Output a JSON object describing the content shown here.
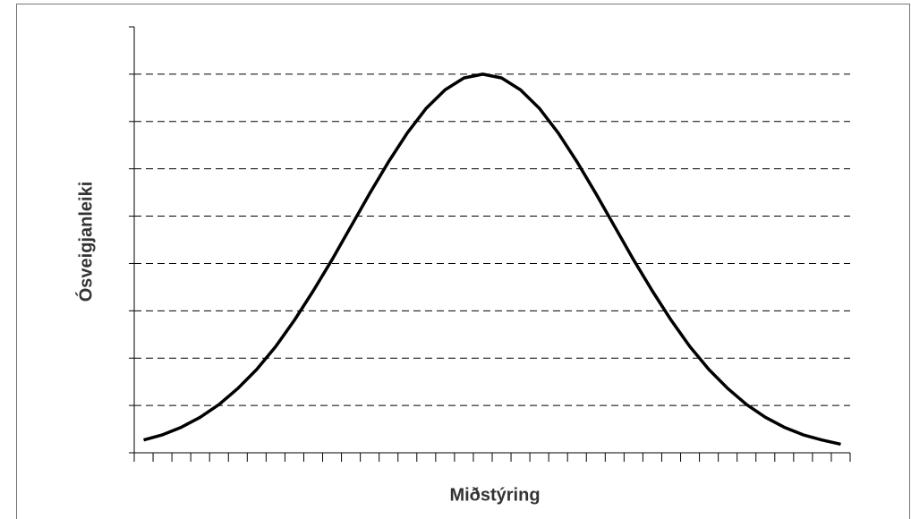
{
  "chart_data": {
    "type": "line",
    "xlabel": "Miðstýring",
    "ylabel": "Ósveigjanleiki",
    "x": [
      0.5,
      1.5,
      2.5,
      3.5,
      4.5,
      5.5,
      6.5,
      7.5,
      8.5,
      9.5,
      10.5,
      11.5,
      12.5,
      13.5,
      14.5,
      15.5,
      16.5,
      17.5,
      18.5,
      19.5,
      20.5,
      21.5,
      22.5,
      23.5,
      24.5,
      25.5,
      26.5,
      27.5,
      28.5,
      29.5,
      30.5,
      31.5,
      32.5,
      33.5,
      34.5,
      35.5,
      36.5,
      37.5
    ],
    "values": [
      0.27,
      0.38,
      0.54,
      0.75,
      1.02,
      1.36,
      1.76,
      2.24,
      2.8,
      3.42,
      4.08,
      4.78,
      5.48,
      6.15,
      6.76,
      7.28,
      7.67,
      7.92,
      8.0,
      7.92,
      7.67,
      7.28,
      6.76,
      6.15,
      5.48,
      4.78,
      4.08,
      3.42,
      2.8,
      2.24,
      1.76,
      1.36,
      1.02,
      0.75,
      0.54,
      0.38,
      0.27,
      0.18
    ],
    "color": "#000000",
    "xlim": [
      0,
      38
    ],
    "xticks": [
      0,
      1,
      2,
      3,
      4,
      5,
      6,
      7,
      8,
      9,
      10,
      11,
      12,
      13,
      14,
      15,
      16,
      17,
      18,
      19,
      20,
      21,
      22,
      23,
      24,
      25,
      26,
      27,
      28,
      29,
      30,
      31,
      32,
      33,
      34,
      35,
      36,
      37,
      38
    ],
    "ylim": [
      0,
      9
    ],
    "yticks": [
      0,
      1,
      2,
      3,
      4,
      5,
      6,
      7,
      8,
      9
    ],
    "grid": true
  }
}
